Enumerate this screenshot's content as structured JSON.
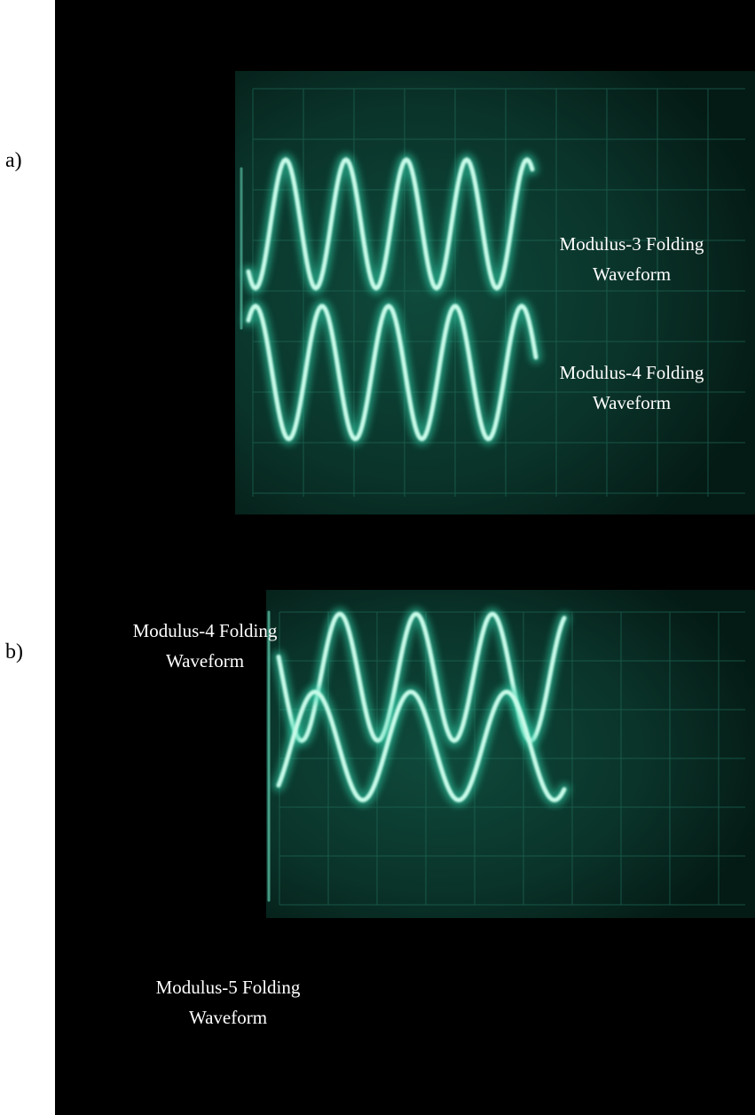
{
  "panels": [
    {
      "label": "a)",
      "annotations": [
        "Modulus-3 Folding Waveform",
        "Modulus-4 Folding Waveform"
      ]
    },
    {
      "label": "b)",
      "annotations": [
        "Modulus-4 Folding Waveform",
        "Modulus-5 Folding Waveform"
      ]
    }
  ]
}
